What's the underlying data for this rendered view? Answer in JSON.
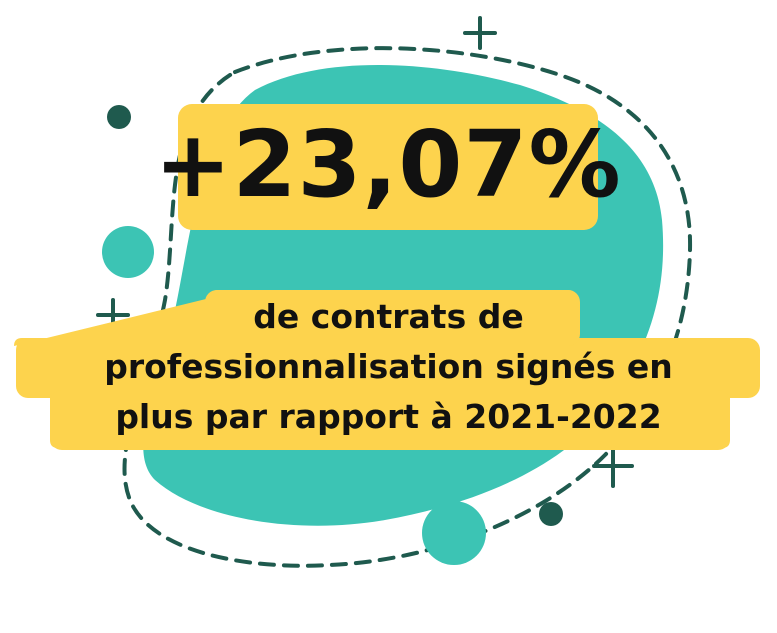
{
  "statistic": {
    "value": "+23,07%"
  },
  "caption": {
    "line1": "de contrats de",
    "line2": "professionnalisation signés en",
    "line3": "plus par rapport à 2021-2022"
  },
  "colors": {
    "blob": "#3cc4b4",
    "highlight": "#fdd34d",
    "dark": "#1f5a4e",
    "text": "#111111",
    "background": "#ffffff"
  }
}
